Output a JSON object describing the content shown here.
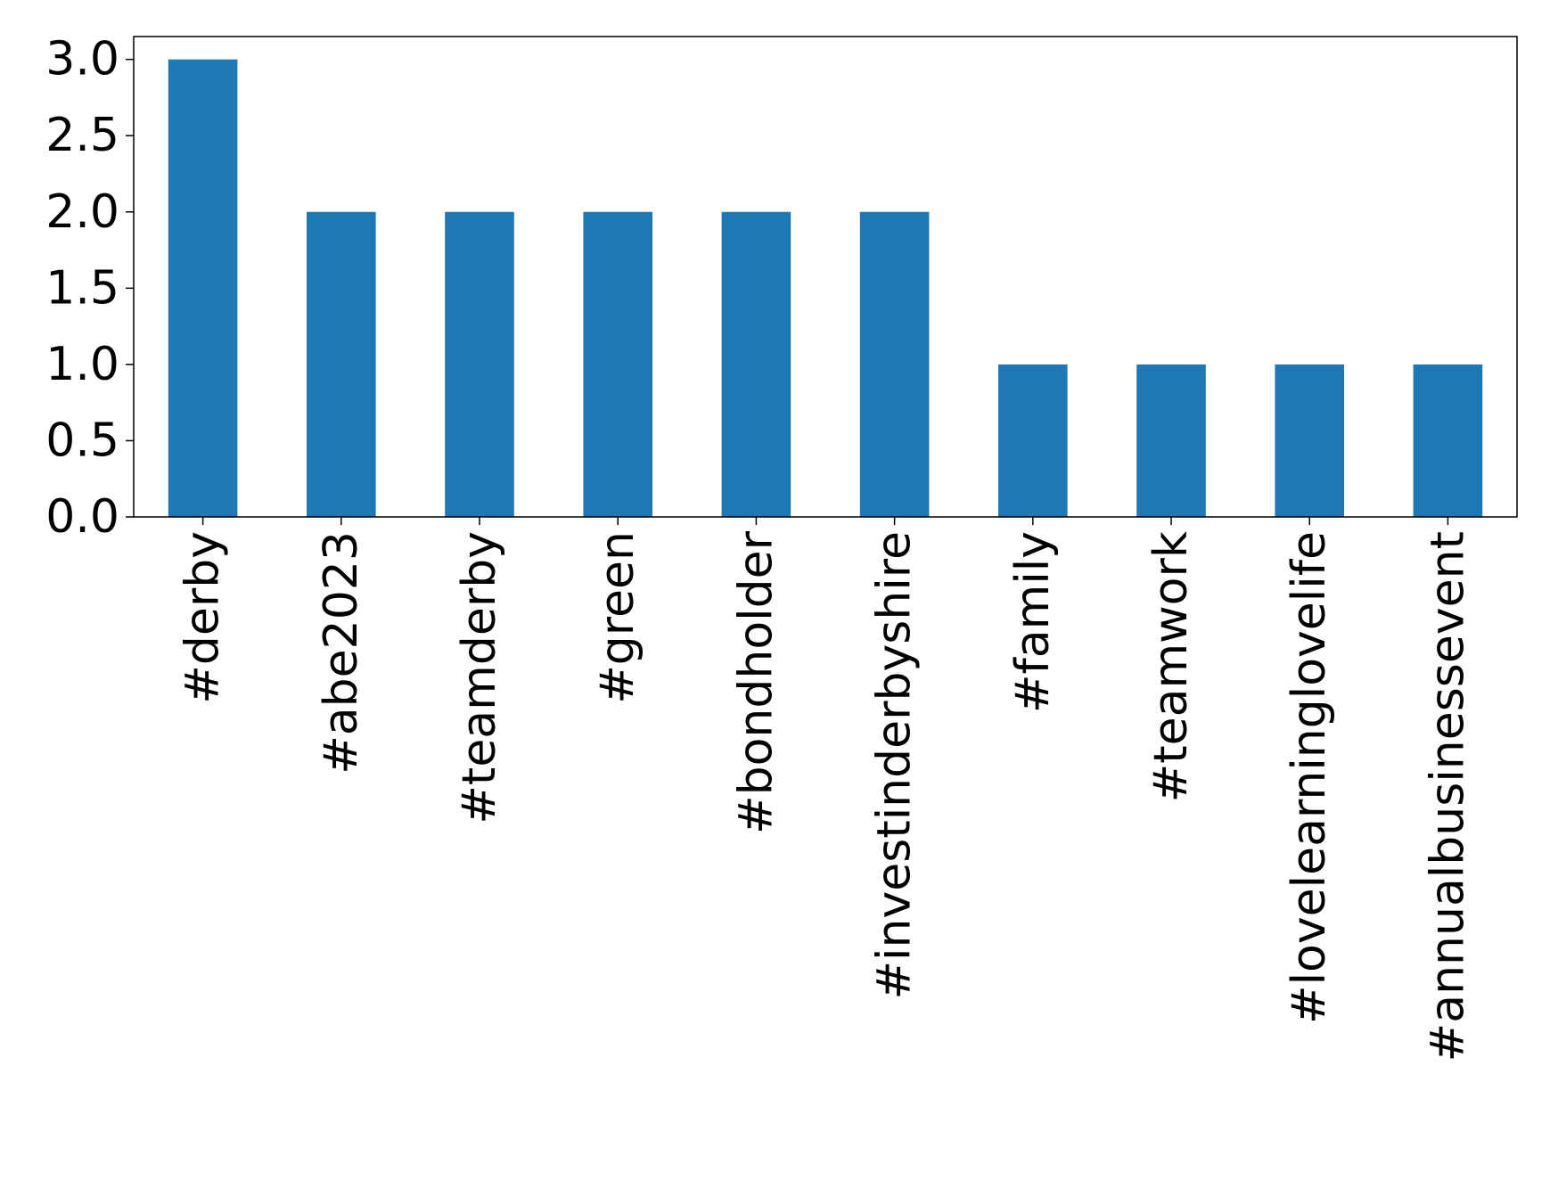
{
  "chart_data": {
    "type": "bar",
    "categories": [
      "#derby",
      "#abe2023",
      "#teamderby",
      "#green",
      "#bondholder",
      "#investinderbyshire",
      "#family",
      "#teamwork",
      "#lovelearninglovelife",
      "#annualbusinessevent"
    ],
    "values": [
      3,
      2,
      2,
      2,
      2,
      2,
      1,
      1,
      1,
      1
    ],
    "yticks": [
      "0.0",
      "0.5",
      "1.0",
      "1.5",
      "2.0",
      "2.5",
      "3.0"
    ],
    "ylim": [
      0,
      3.15
    ],
    "xlabel": "",
    "ylabel": "",
    "title": "",
    "grid": false,
    "bar_color": "#1f77b4"
  }
}
